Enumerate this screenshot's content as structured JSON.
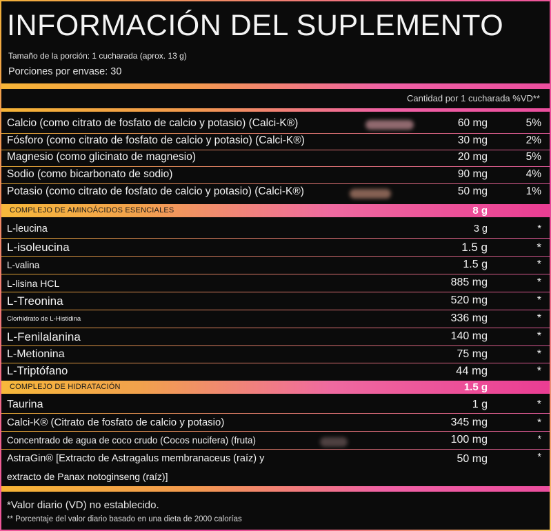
{
  "header": {
    "title": "INFORMACIÓN DEL SUPLEMENTO",
    "serving_size": "Tamaño de la porción: 1 cucharada (aprox. 13 g)",
    "servings_per_container": "Porciones por envase: 30",
    "amount_header": "Cantidad por 1 cucharada %VD**"
  },
  "minerals": [
    {
      "name": "Calcio (como citrato de fosfato de calcio y potasio) (Calci-K®)",
      "amount": "60 mg",
      "dv": "5%"
    },
    {
      "name": "Fósforo (como citrato de fosfato de calcio y potasio) (Calci-K®)",
      "amount": "30 mg",
      "dv": "2%"
    },
    {
      "name": "Magnesio (como glicinato de magnesio)",
      "amount": "20 mg",
      "dv": "5%"
    },
    {
      "name": "Sodio (como bicarbonato de sodio)",
      "amount": "90 mg",
      "dv": "4%"
    },
    {
      "name": "Potasio (como citrato de fosfato de calcio y potasio) (Calci-K®)",
      "amount": "50 mg",
      "dv": "1%"
    }
  ],
  "amino_section": {
    "label": "COMPLEJO DE AMINOÁCIDOS ESENCIALES",
    "total": "8 g"
  },
  "aminos": [
    {
      "name": "L-leucina",
      "amount": "3 g",
      "dv": "*"
    },
    {
      "name": "L-isoleucina",
      "amount": "1.5 g",
      "dv": "*"
    },
    {
      "name": "L-valina",
      "amount": "1.5 g",
      "dv": "*"
    },
    {
      "name": "L-lisina HCL",
      "amount": "885 mg",
      "dv": "*"
    },
    {
      "name": "L-Treonina",
      "amount": "520 mg",
      "dv": "*"
    },
    {
      "name": "Clorhidrato de L-Histidina",
      "amount": "336 mg",
      "dv": "*"
    },
    {
      "name": "L-Fenilalanina",
      "amount": "140 mg",
      "dv": "*"
    },
    {
      "name": "L-Metionina",
      "amount": "75 mg",
      "dv": "*"
    },
    {
      "name": "L-Triptófano",
      "amount": "44 mg",
      "dv": "*"
    }
  ],
  "hydration_section": {
    "label": "COMPLEJO DE HIDRATACIÓN",
    "total": "1.5 g"
  },
  "hydration": [
    {
      "name": "Taurina",
      "amount": "1 g",
      "dv": "*"
    },
    {
      "name": "Calci-K® (Citrato de fosfato de calcio y potasio)",
      "amount": "345 mg",
      "dv": "*"
    },
    {
      "name": "Concentrado de agua de coco crudo (Cocos nucifera) (fruta)",
      "amount": "100 mg",
      "dv": "*"
    },
    {
      "name": "AstraGin® [Extracto de Astragalus membranaceus (raíz) y",
      "name2": "extracto de Panax notoginseng (raíz)]",
      "amount": "50 mg",
      "dv": "*"
    }
  ],
  "footer": {
    "note1": "*Valor diario (VD) no establecido.",
    "note2": "** Porcentaje del valor diario basado en una dieta de 2000 calorías"
  },
  "colors": {
    "gold": "#f6b436",
    "pink": "#ec4e9e",
    "background": "#0b0b0b"
  }
}
